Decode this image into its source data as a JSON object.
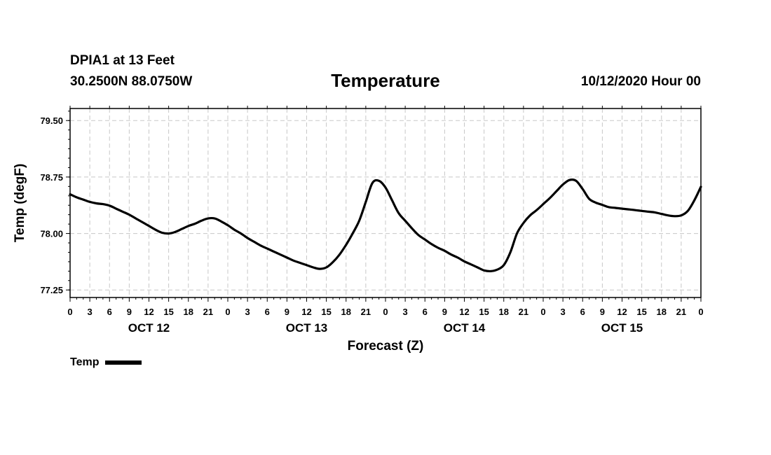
{
  "header": {
    "station": "DPIA1 at 13 Feet",
    "coordinates": "30.2500N 88.0750W",
    "title": "Temperature",
    "run_time": "10/12/2020 Hour 00"
  },
  "legend": {
    "label": "Temp",
    "color": "#000000"
  },
  "chart_data": {
    "type": "line",
    "title": "Temperature",
    "xlabel": "Forecast (Z)",
    "ylabel": "Temp (degF)",
    "xlim": [
      0,
      96
    ],
    "ylim": [
      77.15,
      79.66
    ],
    "y_ticks": [
      77.25,
      78.0,
      78.75,
      79.5
    ],
    "y_tick_labels": [
      "77.25",
      "78.00",
      "78.75",
      "79.50"
    ],
    "x_ticks": [
      0,
      3,
      6,
      9,
      12,
      15,
      18,
      21,
      24,
      27,
      30,
      33,
      36,
      39,
      42,
      45,
      48,
      51,
      54,
      57,
      60,
      63,
      66,
      69,
      72,
      75,
      78,
      81,
      84,
      87,
      90,
      93,
      96
    ],
    "x_tick_labels": [
      "0",
      "3",
      "6",
      "9",
      "12",
      "15",
      "18",
      "21",
      "0",
      "3",
      "6",
      "9",
      "12",
      "15",
      "18",
      "21",
      "0",
      "3",
      "6",
      "9",
      "12",
      "15",
      "18",
      "21",
      "0",
      "3",
      "6",
      "9",
      "12",
      "15",
      "18",
      "21",
      "0"
    ],
    "day_labels": [
      {
        "text": "OCT 12",
        "at": 12
      },
      {
        "text": "OCT 13",
        "at": 36
      },
      {
        "text": "OCT 14",
        "at": 60
      },
      {
        "text": "OCT 15",
        "at": 84
      }
    ],
    "grid": true,
    "series": [
      {
        "name": "Temp",
        "color": "#000000",
        "x": [
          0,
          1,
          2,
          3,
          4,
          5,
          6,
          7,
          8,
          9,
          10,
          11,
          12,
          13,
          14,
          15,
          16,
          17,
          18,
          19,
          20,
          21,
          22,
          23,
          24,
          25,
          26,
          27,
          28,
          29,
          30,
          31,
          32,
          33,
          34,
          35,
          36,
          37,
          38,
          39,
          40,
          41,
          42,
          43,
          44,
          45,
          46,
          47,
          48,
          49,
          50,
          51,
          52,
          53,
          54,
          55,
          56,
          57,
          58,
          59,
          60,
          61,
          62,
          63,
          64,
          65,
          66,
          67,
          68,
          69,
          70,
          71,
          72,
          73,
          74,
          75,
          76,
          77,
          78,
          79,
          80,
          81,
          82,
          83,
          84,
          85,
          86,
          87,
          88,
          89,
          90,
          91,
          92,
          93,
          94,
          95,
          96
        ],
        "y": [
          78.52,
          78.48,
          78.45,
          78.42,
          78.4,
          78.39,
          78.37,
          78.33,
          78.29,
          78.25,
          78.2,
          78.15,
          78.1,
          78.05,
          78.01,
          78.0,
          78.02,
          78.06,
          78.1,
          78.13,
          78.17,
          78.2,
          78.2,
          78.16,
          78.11,
          78.05,
          78.0,
          77.94,
          77.89,
          77.84,
          77.8,
          77.76,
          77.72,
          77.68,
          77.64,
          77.61,
          77.58,
          77.55,
          77.53,
          77.55,
          77.62,
          77.72,
          77.85,
          78.0,
          78.17,
          78.42,
          78.67,
          78.7,
          78.61,
          78.44,
          78.27,
          78.17,
          78.07,
          77.98,
          77.92,
          77.86,
          77.81,
          77.77,
          77.72,
          77.68,
          77.63,
          77.59,
          77.55,
          77.51,
          77.5,
          77.52,
          77.58,
          77.75,
          78.0,
          78.14,
          78.24,
          78.31,
          78.39,
          78.47,
          78.56,
          78.65,
          78.71,
          78.7,
          78.59,
          78.46,
          78.41,
          78.38,
          78.35,
          78.34,
          78.33,
          78.32,
          78.31,
          78.3,
          78.29,
          78.28,
          78.26,
          78.24,
          78.23,
          78.24,
          78.3,
          78.44,
          78.62
        ]
      }
    ]
  }
}
